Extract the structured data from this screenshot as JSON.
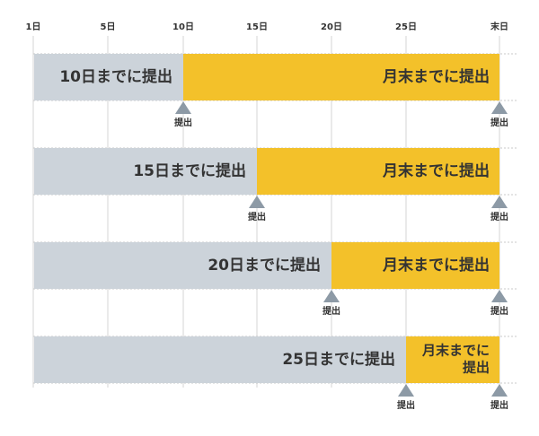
{
  "axis": {
    "ticks": [
      "1日",
      "5日",
      "10日",
      "15日",
      "20日",
      "25日",
      "末日"
    ]
  },
  "rows": [
    {
      "before": "10日までに提出",
      "after": [
        "月末までに提出"
      ],
      "markers": [
        "提出",
        "提出"
      ]
    },
    {
      "before": "15日までに提出",
      "after": [
        "月末までに提出"
      ],
      "markers": [
        "提出",
        "提出"
      ]
    },
    {
      "before": "20日までに提出",
      "after": [
        "月末までに提出"
      ],
      "markers": [
        "提出",
        "提出"
      ]
    },
    {
      "before": "25日までに提出",
      "after": [
        "月末までに",
        "提出"
      ],
      "markers": [
        "提出",
        "提出"
      ]
    }
  ]
}
